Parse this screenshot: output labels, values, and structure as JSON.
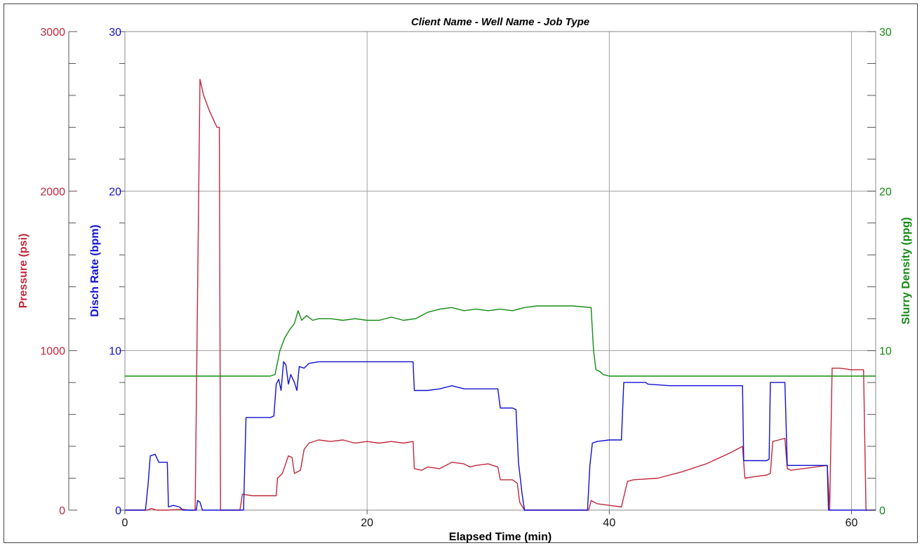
{
  "chart_data": {
    "type": "line",
    "title": "Client Name - Well Name - Job Type",
    "xlabel": "Elapsed Time (min)",
    "xlim": [
      0,
      62
    ],
    "x_ticks": [
      0,
      20,
      40,
      60
    ],
    "grid": true,
    "legend": "none",
    "colors": {
      "pressure": "#c0283c",
      "rate": "#1010d0",
      "density": "#138a13",
      "grid": "#a0a0a0",
      "axis": "#555555"
    },
    "axes": {
      "pressure": {
        "label": "Pressure (psi)",
        "ylim": [
          0,
          3000
        ],
        "ticks": [
          "0",
          "1000",
          "2000",
          "3000"
        ]
      },
      "rate": {
        "label": "Disch Rate (bpm)",
        "ylim": [
          0,
          30
        ],
        "ticks": [
          "0",
          "10",
          "20",
          "30"
        ]
      },
      "density": {
        "label": "Slurry Density (ppg)",
        "ylim": [
          0,
          30
        ],
        "ticks": [
          "0",
          "10",
          "20",
          "30"
        ]
      }
    },
    "series": [
      {
        "axis": "pressure",
        "points": [
          [
            0,
            0
          ],
          [
            1.8,
            0
          ],
          [
            2.2,
            10
          ],
          [
            2.6,
            0
          ],
          [
            3.5,
            0
          ],
          [
            4.8,
            5
          ],
          [
            5.3,
            0
          ],
          [
            5.8,
            0
          ],
          [
            6.2,
            2700
          ],
          [
            6.5,
            2600
          ],
          [
            7,
            2500
          ],
          [
            7.6,
            2400
          ],
          [
            7.8,
            2400
          ],
          [
            7.9,
            0
          ],
          [
            9.5,
            0
          ],
          [
            9.7,
            100
          ],
          [
            10.5,
            90
          ],
          [
            12,
            90
          ],
          [
            12.5,
            90
          ],
          [
            12.6,
            200
          ],
          [
            13,
            230
          ],
          [
            13.5,
            340
          ],
          [
            13.8,
            330
          ],
          [
            14,
            230
          ],
          [
            14.5,
            250
          ],
          [
            14.8,
            380
          ],
          [
            15.2,
            420
          ],
          [
            16,
            440
          ],
          [
            17,
            430
          ],
          [
            18,
            440
          ],
          [
            19,
            420
          ],
          [
            20,
            430
          ],
          [
            21,
            420
          ],
          [
            22,
            430
          ],
          [
            23,
            420
          ],
          [
            23.8,
            430
          ],
          [
            23.9,
            260
          ],
          [
            24.5,
            250
          ],
          [
            25,
            270
          ],
          [
            26,
            260
          ],
          [
            27,
            300
          ],
          [
            28,
            290
          ],
          [
            28.5,
            270
          ],
          [
            29,
            280
          ],
          [
            30,
            290
          ],
          [
            30.8,
            270
          ],
          [
            31,
            190
          ],
          [
            32,
            190
          ],
          [
            32.4,
            170
          ],
          [
            32.6,
            50
          ],
          [
            33,
            0
          ],
          [
            38.3,
            0
          ],
          [
            38.5,
            60
          ],
          [
            39,
            40
          ],
          [
            40,
            30
          ],
          [
            41,
            20
          ],
          [
            41.5,
            180
          ],
          [
            42,
            190
          ],
          [
            44,
            200
          ],
          [
            46,
            240
          ],
          [
            48,
            290
          ],
          [
            50,
            360
          ],
          [
            51,
            400
          ],
          [
            51.2,
            200
          ],
          [
            52,
            210
          ],
          [
            53,
            220
          ],
          [
            53.3,
            230
          ],
          [
            53.5,
            430
          ],
          [
            54,
            440
          ],
          [
            54.5,
            450
          ],
          [
            54.7,
            260
          ],
          [
            55,
            250
          ],
          [
            56,
            260
          ],
          [
            57,
            270
          ],
          [
            58,
            280
          ],
          [
            58.2,
            0
          ],
          [
            58.4,
            890
          ],
          [
            59,
            890
          ],
          [
            60,
            880
          ],
          [
            61,
            880
          ],
          [
            61.2,
            0
          ],
          [
            62,
            0
          ]
        ]
      },
      {
        "axis": "rate",
        "points": [
          [
            0,
            0
          ],
          [
            1.7,
            0
          ],
          [
            1.9,
            1.5
          ],
          [
            2.1,
            3.4
          ],
          [
            2.5,
            3.5
          ],
          [
            2.8,
            3
          ],
          [
            3.5,
            3
          ],
          [
            3.6,
            0.2
          ],
          [
            4,
            0.3
          ],
          [
            4.5,
            0.2
          ],
          [
            4.8,
            0
          ],
          [
            5.9,
            0
          ],
          [
            6,
            0.6
          ],
          [
            6.2,
            0.5
          ],
          [
            6.4,
            0
          ],
          [
            9.8,
            0
          ],
          [
            10,
            5.8
          ],
          [
            11,
            5.8
          ],
          [
            12,
            5.8
          ],
          [
            12.3,
            5.9
          ],
          [
            12.5,
            7.9
          ],
          [
            12.7,
            8.2
          ],
          [
            12.9,
            7.5
          ],
          [
            13.1,
            9.3
          ],
          [
            13.3,
            9.1
          ],
          [
            13.5,
            7.9
          ],
          [
            13.7,
            8.5
          ],
          [
            14,
            8
          ],
          [
            14.2,
            7.5
          ],
          [
            14.4,
            9
          ],
          [
            14.8,
            8.9
          ],
          [
            15.2,
            9.2
          ],
          [
            16,
            9.3
          ],
          [
            18,
            9.3
          ],
          [
            20,
            9.3
          ],
          [
            22,
            9.3
          ],
          [
            23.8,
            9.3
          ],
          [
            23.9,
            7.5
          ],
          [
            25,
            7.5
          ],
          [
            26,
            7.6
          ],
          [
            27,
            7.8
          ],
          [
            28,
            7.6
          ],
          [
            29,
            7.6
          ],
          [
            30,
            7.6
          ],
          [
            30.8,
            7.6
          ],
          [
            31,
            6.4
          ],
          [
            32,
            6.4
          ],
          [
            32.3,
            6.3
          ],
          [
            32.5,
            3
          ],
          [
            32.8,
            1
          ],
          [
            33,
            0
          ],
          [
            38.2,
            0
          ],
          [
            38.4,
            2.8
          ],
          [
            38.6,
            4.2
          ],
          [
            39,
            4.3
          ],
          [
            40,
            4.4
          ],
          [
            41,
            4.4
          ],
          [
            41.2,
            8
          ],
          [
            43,
            8
          ],
          [
            43.2,
            7.9
          ],
          [
            45,
            7.8
          ],
          [
            48,
            7.8
          ],
          [
            50,
            7.8
          ],
          [
            51,
            7.8
          ],
          [
            51.1,
            3.1
          ],
          [
            52,
            3.1
          ],
          [
            53,
            3.1
          ],
          [
            53.2,
            3.2
          ],
          [
            53.3,
            8
          ],
          [
            54,
            8
          ],
          [
            54.5,
            8
          ],
          [
            54.7,
            2.8
          ],
          [
            56,
            2.8
          ],
          [
            58,
            2.8
          ],
          [
            58.1,
            0
          ],
          [
            62,
            0
          ]
        ]
      },
      {
        "axis": "density",
        "points": [
          [
            0,
            8.4
          ],
          [
            12,
            8.4
          ],
          [
            12.4,
            8.5
          ],
          [
            12.8,
            10
          ],
          [
            13.2,
            10.8
          ],
          [
            13.6,
            11.3
          ],
          [
            14,
            11.7
          ],
          [
            14.3,
            12.5
          ],
          [
            14.6,
            11.9
          ],
          [
            15,
            12.2
          ],
          [
            15.5,
            11.9
          ],
          [
            16,
            12
          ],
          [
            17,
            12
          ],
          [
            18,
            11.9
          ],
          [
            19,
            12
          ],
          [
            20,
            11.9
          ],
          [
            21,
            11.9
          ],
          [
            22,
            12.1
          ],
          [
            23,
            11.9
          ],
          [
            24,
            12
          ],
          [
            25,
            12.4
          ],
          [
            26,
            12.6
          ],
          [
            27,
            12.7
          ],
          [
            28,
            12.5
          ],
          [
            29,
            12.6
          ],
          [
            30,
            12.5
          ],
          [
            31,
            12.6
          ],
          [
            32,
            12.5
          ],
          [
            33,
            12.7
          ],
          [
            34,
            12.8
          ],
          [
            36,
            12.8
          ],
          [
            37,
            12.8
          ],
          [
            38.5,
            12.7
          ],
          [
            38.7,
            10
          ],
          [
            38.9,
            8.8
          ],
          [
            39.2,
            8.7
          ],
          [
            39.5,
            8.5
          ],
          [
            40,
            8.4
          ],
          [
            41,
            8.4
          ],
          [
            50,
            8.4
          ],
          [
            62,
            8.4
          ]
        ]
      }
    ]
  }
}
